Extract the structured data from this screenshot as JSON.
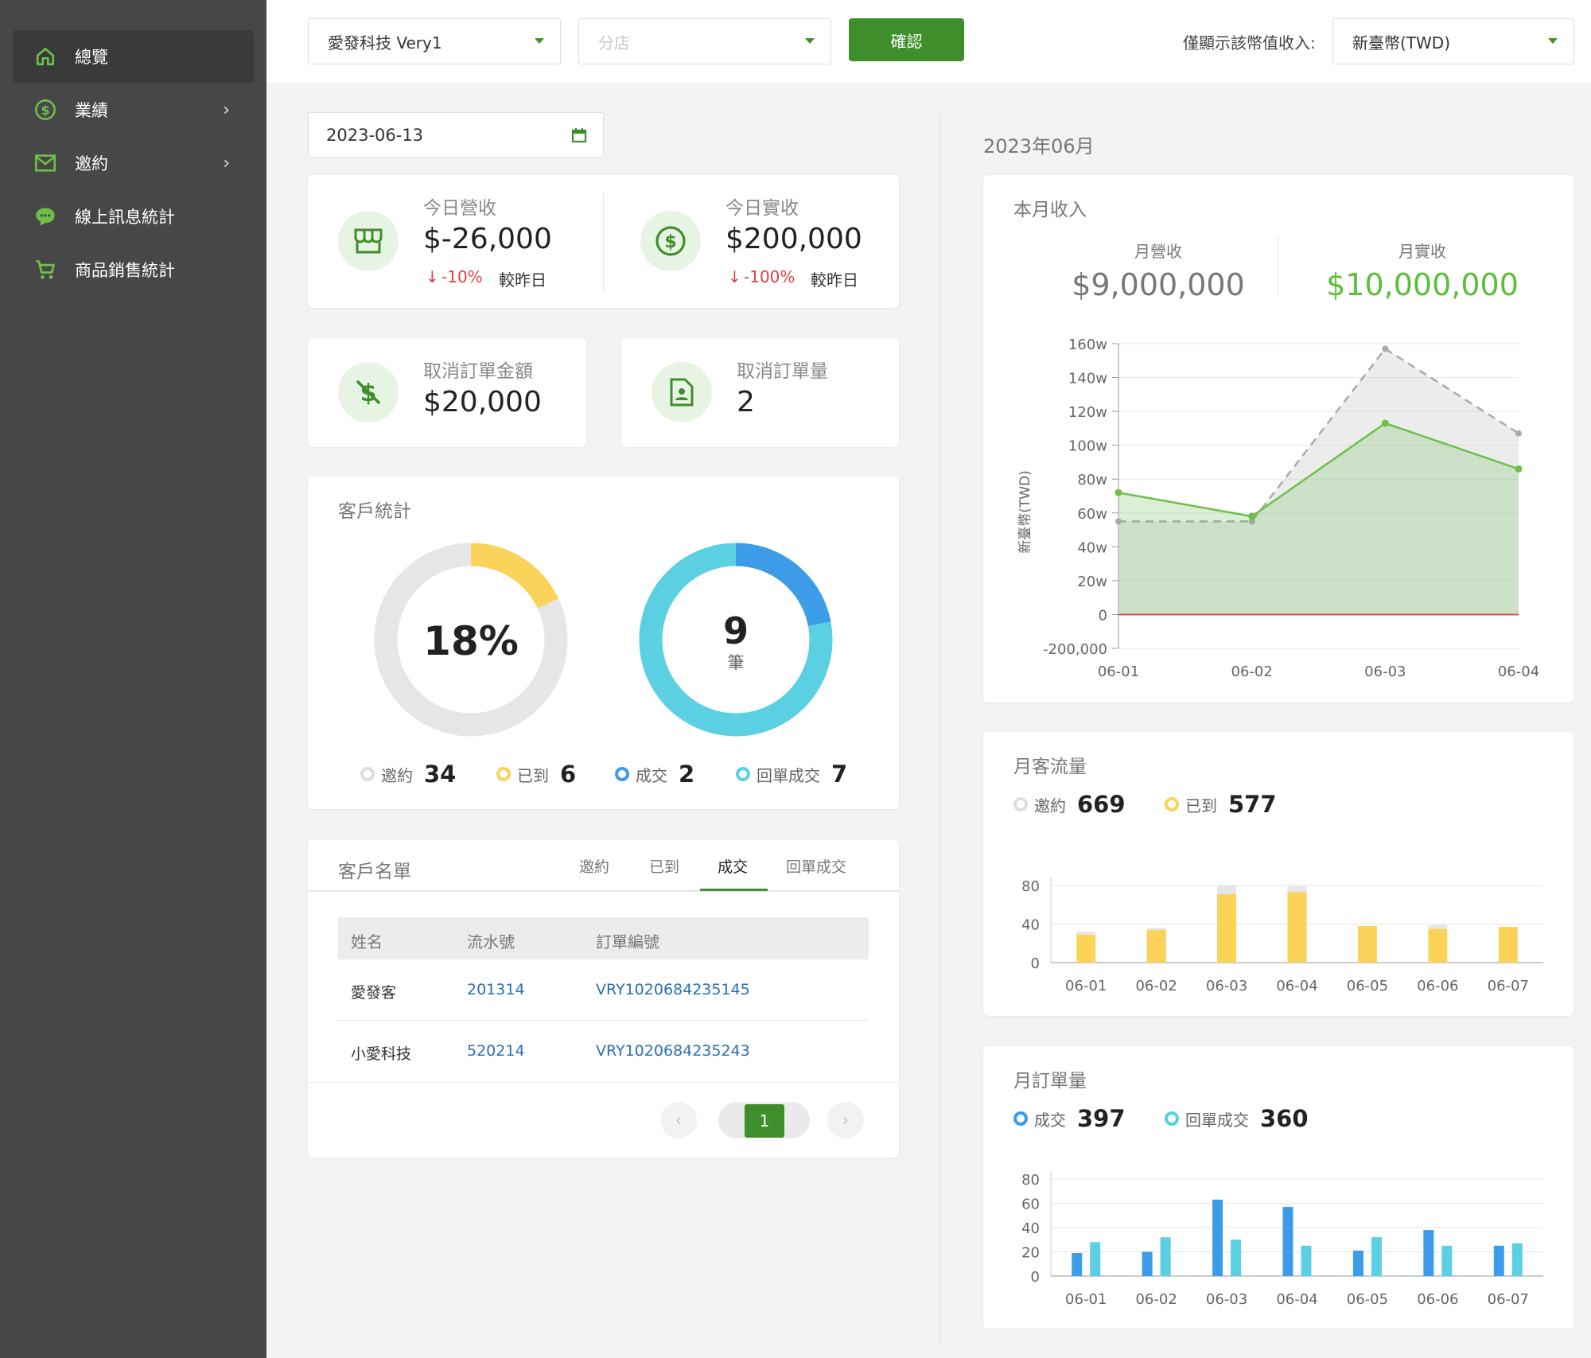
{
  "sidebar": {
    "items": [
      {
        "label": "總覽",
        "icon": "home-icon",
        "active": true
      },
      {
        "label": "業績",
        "icon": "dollar-circle-icon",
        "has_children": true
      },
      {
        "label": "邀約",
        "icon": "mail-icon",
        "has_children": true
      },
      {
        "label": "線上訊息統計",
        "icon": "chat-icon"
      },
      {
        "label": "商品銷售統計",
        "icon": "cart-icon"
      }
    ],
    "chevron": "›"
  },
  "topbar": {
    "company_select": "愛發科技 Very1",
    "branch_placeholder": "分店",
    "confirm_label": "確認",
    "currency_label": "僅顯示該幣值收入:",
    "currency_select": "新臺幣(TWD)"
  },
  "date": "2023-06-13",
  "today": {
    "revenue_label": "今日營收",
    "revenue_value": "$-26,000",
    "revenue_change": "-10%",
    "actual_label": "今日實收",
    "actual_value": "$200,000",
    "actual_change": "-100%",
    "compare_label": "較昨日",
    "down_arrow": "↓"
  },
  "cancel": {
    "amount_label": "取消訂單金額",
    "amount_value": "$20,000",
    "count_label": "取消訂單量",
    "count_value": "2"
  },
  "customer_stats": {
    "title": "客戶統計",
    "percent": "18%",
    "count": "9",
    "count_unit": "筆",
    "percent_fraction": 0.18,
    "ring2_fraction": 0.22,
    "legend": [
      {
        "label": "邀約",
        "value": "34",
        "color": "#dddddd"
      },
      {
        "label": "已到",
        "value": "6",
        "color": "#fbd35a"
      },
      {
        "label": "成交",
        "value": "2",
        "color": "#3c9ce8"
      },
      {
        "label": "回單成交",
        "value": "7",
        "color": "#5bd0e3"
      }
    ]
  },
  "customer_list": {
    "title": "客戶名單",
    "tabs": [
      "邀約",
      "已到",
      "成交",
      "回單成交"
    ],
    "active_tab": "成交",
    "columns": [
      "姓名",
      "流水號",
      "訂單編號"
    ],
    "rows": [
      [
        "愛發客",
        "201314",
        "VRY1020684235145"
      ],
      [
        "小愛科技",
        "520214",
        "VRY1020684235243"
      ]
    ],
    "page": "1",
    "prev": "‹",
    "next": "›"
  },
  "right": {
    "month_title": "2023年06月",
    "income": {
      "title": "本月收入",
      "revenue_label": "月營收",
      "revenue_value": "$9,000,000",
      "actual_label": "月實收",
      "actual_value": "$10,000,000"
    },
    "traffic": {
      "title": "月客流量",
      "legend": [
        {
          "label": "邀約",
          "value": "669",
          "color": "#dddddd"
        },
        {
          "label": "已到",
          "value": "577",
          "color": "#fbd35a"
        }
      ]
    },
    "orders": {
      "title": "月訂單量",
      "legend": [
        {
          "label": "成交",
          "value": "397",
          "color": "#3c9ce8"
        },
        {
          "label": "回單成交",
          "value": "360",
          "color": "#5bd0e3"
        }
      ]
    }
  },
  "chart_data": [
    {
      "type": "area",
      "title": "本月收入",
      "ylabel": "新臺幣(TWD)",
      "categories": [
        "06-01",
        "06-02",
        "06-03",
        "06-04"
      ],
      "y_ticks": [
        "-200,000",
        "0",
        "20w",
        "40w",
        "60w",
        "80w",
        "100w",
        "120w",
        "140w",
        "160w"
      ],
      "ylim": [
        -20,
        160
      ],
      "series": [
        {
          "style": "dashed-gray",
          "values": [
            55,
            55,
            157,
            107
          ]
        },
        {
          "style": "solid-green",
          "values": [
            72,
            58,
            113,
            86
          ]
        }
      ],
      "zero_line_color": "#e05050"
    },
    {
      "type": "bar",
      "title": "月客流量",
      "categories": [
        "06-01",
        "06-02",
        "06-03",
        "06-04",
        "06-05",
        "06-06",
        "06-07"
      ],
      "y_ticks": [
        "0",
        "40",
        "80"
      ],
      "ylim": [
        0,
        80
      ],
      "stacked": true,
      "series": [
        {
          "name": "已到",
          "color": "#fbd35a",
          "values": [
            29,
            34,
            71,
            73,
            38,
            35,
            37
          ]
        },
        {
          "name": "邀約",
          "color": "#e6e6e6",
          "values": [
            3,
            2,
            9,
            6,
            0,
            4,
            0
          ]
        }
      ]
    },
    {
      "type": "bar",
      "title": "月訂單量",
      "categories": [
        "06-01",
        "06-02",
        "06-03",
        "06-04",
        "06-05",
        "06-06",
        "06-07"
      ],
      "y_ticks": [
        "0",
        "20",
        "40",
        "60",
        "80"
      ],
      "ylim": [
        0,
        80
      ],
      "series": [
        {
          "name": "成交",
          "color": "#3c9ce8",
          "values": [
            19,
            20,
            63,
            57,
            21,
            38,
            25
          ]
        },
        {
          "name": "回單成交",
          "color": "#5bd0e3",
          "values": [
            28,
            32,
            30,
            25,
            32,
            25,
            27
          ]
        }
      ]
    }
  ]
}
